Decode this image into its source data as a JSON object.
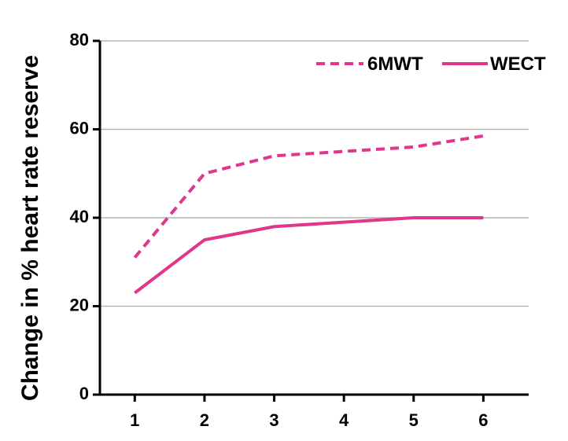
{
  "chart_data": {
    "type": "line",
    "title": "",
    "xlabel": "",
    "ylabel": "Change in % heart rate reserve",
    "x": [
      1,
      2,
      3,
      4,
      5,
      6
    ],
    "xticks": [
      "1",
      "2",
      "3",
      "4",
      "5",
      "6"
    ],
    "yticks": [
      "0",
      "20",
      "40",
      "60",
      "80"
    ],
    "ylim": [
      0,
      80
    ],
    "grid": "horizontal",
    "legend": "top-right",
    "series": [
      {
        "name": "6MWT",
        "values": [
          31,
          50,
          54,
          55,
          56,
          58.5
        ],
        "style": "dashed",
        "color": "#E0368B"
      },
      {
        "name": "WECT",
        "values": [
          23,
          35,
          38,
          39,
          40,
          40
        ],
        "style": "solid",
        "color": "#E0368B"
      }
    ]
  }
}
